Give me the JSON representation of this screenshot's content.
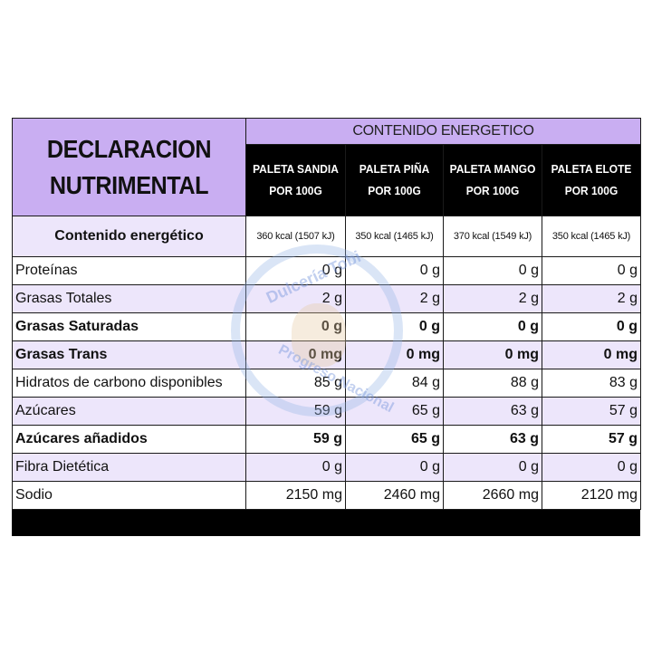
{
  "title_line1": "DECLARACION",
  "title_line2": "NUTRIMENTAL",
  "energy_header": "CONTENIDO ENERGETICO",
  "products": [
    {
      "line1": "PALETA SANDIA",
      "line2": "POR 100G"
    },
    {
      "line1": "PALETA PIÑA",
      "line2": "POR 100G"
    },
    {
      "line1": "PALETA MANGO",
      "line2": "POR 100G"
    },
    {
      "line1": "PALETA ELOTE",
      "line2": "POR 100G"
    }
  ],
  "energy_row": {
    "label": "Contenido energético",
    "values": [
      "360 kcal (1507 kJ)",
      "350 kcal (1465 kJ)",
      "370 kcal (1549 kJ)",
      "350 kcal (1465 kJ)"
    ]
  },
  "rows": [
    {
      "label": "Proteínas",
      "bold": false,
      "values": [
        "0 g",
        "0 g",
        "0 g",
        "0 g"
      ]
    },
    {
      "label": "Grasas Totales",
      "bold": false,
      "values": [
        "2 g",
        "2 g",
        "2 g",
        "2 g"
      ]
    },
    {
      "label": "Grasas Saturadas",
      "bold": true,
      "values": [
        "0 g",
        "0 g",
        "0 g",
        "0 g"
      ]
    },
    {
      "label": "Grasas Trans",
      "bold": true,
      "values": [
        "0 mg",
        "0 mg",
        "0 mg",
        "0 mg"
      ]
    },
    {
      "label": "Hidratos de carbono disponibles",
      "bold": false,
      "values": [
        "85 g",
        "84 g",
        "88 g",
        "83 g"
      ]
    },
    {
      "label": "Azúcares",
      "bold": false,
      "values": [
        "59 g",
        "65 g",
        "63 g",
        "57 g"
      ]
    },
    {
      "label": "Azúcares añadidos",
      "bold": true,
      "values": [
        "59 g",
        "65 g",
        "63 g",
        "57 g"
      ]
    },
    {
      "label": "Fibra Dietética",
      "bold": false,
      "values": [
        "0 g",
        "0 g",
        "0 g",
        "0 g"
      ]
    },
    {
      "label": "Sodio",
      "bold": false,
      "values": [
        "2150 mg",
        "2460 mg",
        "2660 mg",
        "2120 mg"
      ]
    }
  ],
  "watermark": {
    "top_text": "Dulcería Tobi",
    "bottom_text": "Progreso Nacional"
  },
  "colors": {
    "header_purple": "#c9aef2",
    "stripe_lavender": "#ede6fb",
    "header_black": "#000000"
  }
}
